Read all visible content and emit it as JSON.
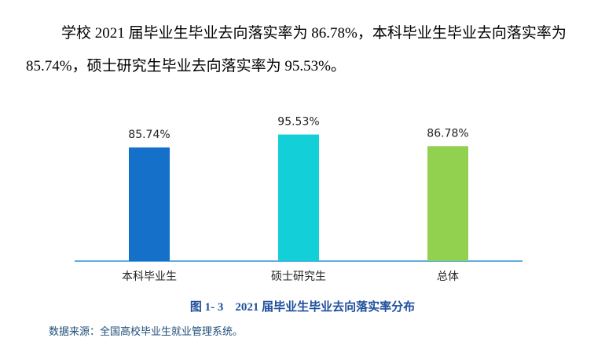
{
  "paragraph": "学校 2021 届毕业生毕业去向落实率为 86.78%，本科毕业生毕业去向落实率为 85.74%，硕士研究生毕业去向落实率为 95.53%。",
  "chart_data": {
    "type": "bar",
    "categories": [
      "本科毕业生",
      "硕士研究生",
      "总体"
    ],
    "values": [
      85.74,
      95.53,
      86.78
    ],
    "value_labels": [
      "85.74%",
      "95.53%",
      "86.78%"
    ],
    "colors": [
      "#1470c8",
      "#13d0d8",
      "#92d050"
    ]
  },
  "caption": "图 1- 3    2021 届毕业生毕业去向落实率分布",
  "source": "数据来源：全国高校毕业生就业管理系统。"
}
